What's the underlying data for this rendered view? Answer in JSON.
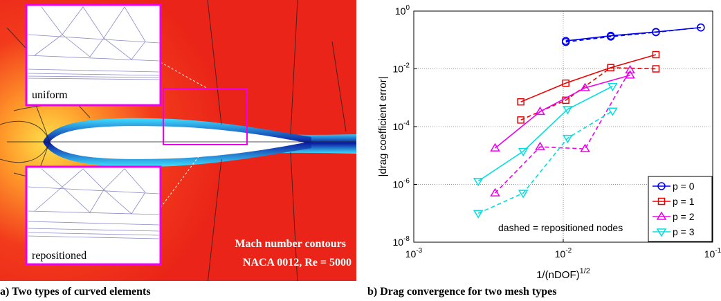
{
  "panel_a": {
    "inset_labels": [
      "uniform",
      "repositioned"
    ],
    "annotation": [
      "Mach number contours",
      "NACA 0012, Re = 5000"
    ],
    "caption": "a) Two types of curved elements"
  },
  "chart_data": {
    "type": "line",
    "caption": "b) Drag convergence for two mesh types",
    "ylabel": "|drag coefficient error|",
    "xlabel": "1/(nDOF)",
    "xlabel_sup": "1/2",
    "xlog": true,
    "ylog": true,
    "grid": true,
    "legend": "lower right",
    "annotation": "dashed = repositioned nodes",
    "xlim": [
      0.001,
      0.1
    ],
    "ylim": [
      1e-08,
      1
    ],
    "xticks": [
      {
        "value": 0.001,
        "label": "10",
        "exponent": "-3"
      },
      {
        "value": 0.01,
        "label": "10",
        "exponent": "-2"
      },
      {
        "value": 0.1,
        "label": "10",
        "exponent": "-1"
      }
    ],
    "yticks": [
      {
        "value": 1e-08,
        "label": "10",
        "exponent": "-8"
      },
      {
        "value": 1e-06,
        "label": "10",
        "exponent": "-6"
      },
      {
        "value": 0.0001,
        "label": "10",
        "exponent": "-4"
      },
      {
        "value": 0.01,
        "label": "10",
        "exponent": "-2"
      },
      {
        "value": 1,
        "label": "10",
        "exponent": "0"
      }
    ],
    "series": [
      {
        "name": "p = 0",
        "color": "#0000ee",
        "marker": "circle",
        "x": [
          0.0104,
          0.0208,
          0.0417,
          0.0833
        ],
        "values": [
          0.093,
          0.14,
          0.19,
          0.27
        ],
        "dashed_values": [
          0.085,
          0.13,
          0.185,
          0.27
        ]
      },
      {
        "name": "p = 1",
        "color": "#ee0000",
        "marker": "square",
        "x": [
          0.0052,
          0.0104,
          0.0208,
          0.0417
        ],
        "values": [
          0.00072,
          0.0032,
          0.011,
          0.031
        ],
        "dashed_values": [
          0.00017,
          0.00082,
          0.011,
          0.01
        ]
      },
      {
        "name": "p = 2",
        "color": "#ee00ee",
        "marker": "triangle-up",
        "x": [
          0.0035,
          0.007,
          0.014,
          0.028
        ],
        "values": [
          1.8e-05,
          0.00033,
          0.0022,
          0.006
        ],
        "dashed_values": [
          5e-07,
          2e-05,
          1.7e-05,
          0.009
        ]
      },
      {
        "name": "p = 3",
        "color": "#00e0e0",
        "marker": "triangle-down",
        "x": [
          0.0027,
          0.0054,
          0.0107,
          0.0214
        ],
        "values": [
          1.3e-06,
          1.4e-05,
          0.0004,
          0.0025
        ],
        "dashed_values": [
          1e-07,
          5e-07,
          4e-05,
          0.00035
        ]
      }
    ]
  }
}
